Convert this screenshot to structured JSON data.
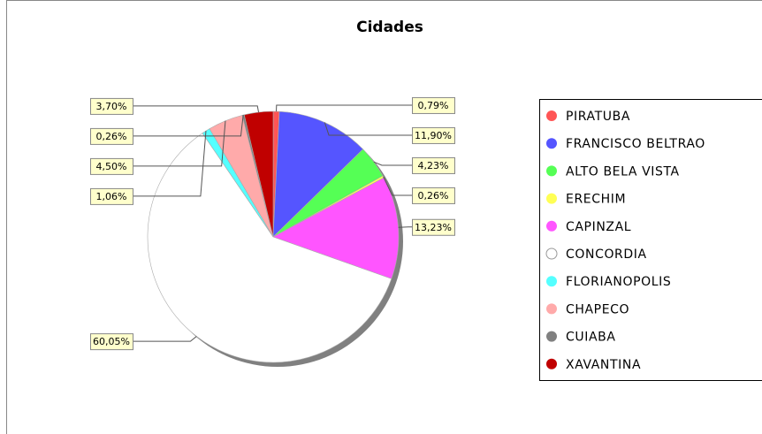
{
  "chart_data": {
    "type": "pie",
    "title": "Cidades",
    "categories": [
      "PIRATUBA",
      "FRANCISCO BELTRAO",
      "ALTO BELA VISTA",
      "ERECHIM",
      "CAPINZAL",
      "CONCORDIA",
      "FLORIANOPOLIS",
      "CHAPECO",
      "CUIABA",
      "XAVANTINA"
    ],
    "values": [
      0.79,
      11.9,
      4.23,
      0.26,
      13.23,
      60.05,
      1.06,
      4.5,
      0.26,
      3.7
    ],
    "value_labels": [
      "0,79%",
      "11,90%",
      "4,23%",
      "0,26%",
      "13,23%",
      "60,05%",
      "1,06%",
      "4,50%",
      "0,26%",
      "3,70%"
    ],
    "colors": [
      "#ff5555",
      "#5555ff",
      "#55ff55",
      "#ffff55",
      "#ff55ff",
      "#ffffff",
      "#55ffff",
      "#ffaaaa",
      "#808080",
      "#c00000"
    ]
  }
}
